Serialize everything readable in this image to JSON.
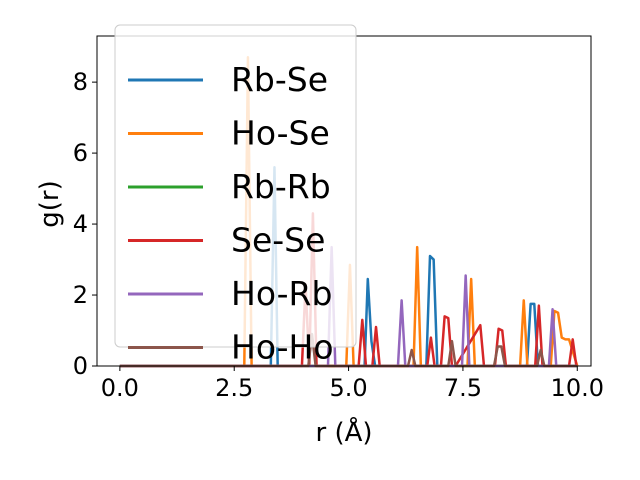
{
  "chart_data": {
    "type": "line",
    "title": "",
    "xlabel": "r (Å)",
    "ylabel": "g(r)",
    "xlim": [
      -0.5,
      10.3
    ],
    "ylim": [
      0,
      9.3
    ],
    "xticks": [
      0.0,
      2.5,
      5.0,
      7.5,
      10.0
    ],
    "xtick_labels": [
      "0.0",
      "2.5",
      "5.0",
      "7.5",
      "10.0"
    ],
    "yticks": [
      0,
      2,
      4,
      6,
      8
    ],
    "ytick_labels": [
      "0",
      "2",
      "4",
      "6",
      "8"
    ],
    "grid": false,
    "legend_position": "upper-left",
    "series": [
      {
        "name": "Rb-Se",
        "color": "#1f77b4",
        "x": [
          0,
          3.3,
          3.38,
          3.45,
          5.35,
          5.42,
          5.5,
          5.58,
          6.7,
          6.78,
          6.86,
          6.94,
          8.9,
          8.98,
          9.06,
          9.14,
          10.0
        ],
        "y": [
          0,
          0,
          5.6,
          0,
          0,
          2.45,
          0.7,
          0,
          0,
          3.1,
          3.0,
          0,
          0,
          1.75,
          1.75,
          0,
          0
        ]
      },
      {
        "name": "Ho-Se",
        "color": "#ff7f0e",
        "x": [
          0,
          2.72,
          2.8,
          2.88,
          4.95,
          5.03,
          5.11,
          6.42,
          6.5,
          6.58,
          7.6,
          7.68,
          7.76,
          8.75,
          8.83,
          8.91,
          9.42,
          9.5,
          9.58,
          9.66,
          9.74,
          9.82,
          10.0
        ],
        "y": [
          0,
          0,
          8.7,
          0,
          0,
          2.85,
          0,
          0,
          3.35,
          0,
          0,
          2.45,
          0,
          0,
          1.85,
          0,
          0,
          1.55,
          1.5,
          0.8,
          0.75,
          0.75,
          0
        ]
      },
      {
        "name": "Rb-Rb",
        "color": "#2ca02c",
        "x": [
          0,
          10.0
        ],
        "y": [
          0,
          0
        ]
      },
      {
        "name": "Se-Se",
        "color": "#d62728",
        "x": [
          0,
          3.98,
          4.06,
          4.14,
          4.22,
          4.3,
          5.22,
          5.3,
          5.38,
          5.52,
          5.6,
          5.68,
          6.72,
          6.8,
          6.88,
          7.02,
          7.1,
          7.18,
          7.26,
          7.34,
          7.88,
          7.96,
          8.04,
          8.2,
          8.28,
          8.36,
          8.44,
          9.08,
          9.16,
          9.24,
          9.82,
          9.9,
          9.98
        ],
        "y": [
          0,
          0,
          2.3,
          0,
          4.3,
          0,
          0,
          1.3,
          0,
          0,
          1.1,
          0,
          0,
          0.8,
          0,
          0,
          1.4,
          1.35,
          0,
          0,
          1.15,
          0,
          0,
          0,
          1.05,
          1.0,
          0,
          0,
          1.7,
          0,
          0,
          0.75,
          0
        ]
      },
      {
        "name": "Ho-Rb",
        "color": "#9467bd",
        "x": [
          0,
          4.55,
          4.63,
          4.71,
          6.08,
          6.16,
          6.24,
          7.48,
          7.56,
          7.64,
          9.38,
          9.46,
          9.54,
          10.0
        ],
        "y": [
          0,
          0,
          3.35,
          0,
          0,
          1.85,
          0,
          0,
          2.55,
          0,
          0,
          1.6,
          0,
          0
        ]
      },
      {
        "name": "Ho-Ho",
        "color": "#8c564b",
        "x": [
          0,
          4.12,
          4.2,
          4.28,
          6.3,
          6.38,
          6.46,
          7.18,
          7.26,
          7.34,
          8.18,
          8.26,
          8.34,
          8.42,
          9.12,
          9.2,
          9.28,
          10.0
        ],
        "y": [
          0,
          0,
          0.9,
          0,
          0,
          0.45,
          0,
          0,
          0.7,
          0,
          0,
          0.55,
          0.55,
          0,
          0,
          0.45,
          0,
          0
        ]
      }
    ]
  }
}
